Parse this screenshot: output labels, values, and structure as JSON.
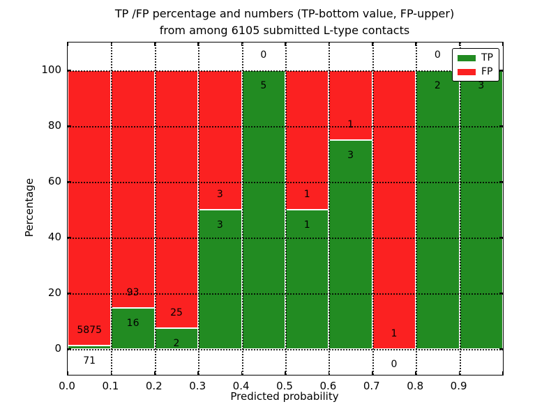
{
  "title": {
    "line1": "TP /FP percentage and numbers (TP-bottom value, FP-upper)",
    "line2": "from among 6105 submitted L-type contacts"
  },
  "x_axis": {
    "label": "Predicted probability",
    "ticks": [
      "0.0",
      "0.1",
      "0.2",
      "0.3",
      "0.4",
      "0.5",
      "0.6",
      "0.7",
      "0.8",
      "0.9"
    ]
  },
  "y_axis": {
    "label": "Percentage",
    "ticks": [
      "0",
      "20",
      "40",
      "60",
      "80",
      "100"
    ],
    "tick_values": [
      0,
      20,
      40,
      60,
      80,
      100
    ]
  },
  "legend": {
    "items": [
      {
        "label": "TP",
        "color": "#228b22"
      },
      {
        "label": "FP",
        "color": "#fb2121"
      }
    ]
  },
  "colors": {
    "tp": "#228b22",
    "fp": "#fb2121",
    "grid": "#000000"
  },
  "chart_data": {
    "type": "bar",
    "stacked": true,
    "normalized": "each bin scaled to 100%",
    "title": "TP /FP percentage and numbers (TP-bottom value, FP-upper) from among 6105 submitted L-type contacts",
    "xlabel": "Predicted probability",
    "ylabel": "Percentage",
    "xlim": [
      0.0,
      1.0
    ],
    "ylim": [
      0,
      100
    ],
    "grid": true,
    "legend_position": "upper right",
    "bin_width": 0.1,
    "bin_starts": [
      0.0,
      0.1,
      0.2,
      0.3,
      0.4,
      0.5,
      0.6,
      0.7,
      0.8,
      0.9
    ],
    "total_contacts": 6105,
    "series": [
      {
        "name": "TP",
        "color": "#228b22",
        "counts": [
          71,
          16,
          2,
          3,
          5,
          1,
          3,
          0,
          2,
          3
        ]
      },
      {
        "name": "FP",
        "color": "#fb2121",
        "counts": [
          5875,
          93,
          25,
          3,
          0,
          1,
          1,
          1,
          0,
          0
        ]
      }
    ],
    "tp_percent": [
      1.2,
      14.7,
      7.4,
      50,
      100,
      50,
      75,
      0,
      100,
      100
    ]
  }
}
